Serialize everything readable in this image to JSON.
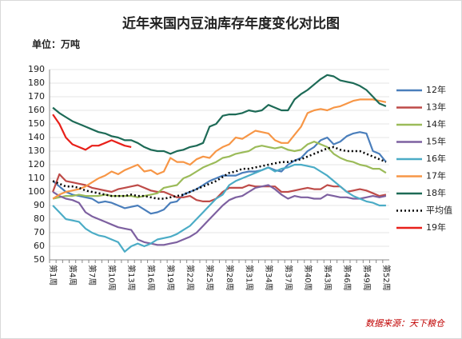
{
  "chart_data": {
    "type": "line",
    "title": "近年来国内豆油库存年度变化对比图",
    "subtitle": "单位：万吨",
    "source": "数据来源：天下粮仓",
    "categories": [
      "第1周",
      null,
      null,
      "第4周",
      null,
      null,
      "第7周",
      null,
      null,
      "第10周",
      null,
      null,
      "第13周",
      null,
      null,
      "第16周",
      null,
      null,
      "第19周",
      null,
      null,
      "第22周",
      null,
      null,
      "第25周",
      null,
      null,
      "第28周",
      null,
      null,
      "第31周",
      null,
      null,
      "第34周",
      null,
      null,
      "第37周",
      null,
      null,
      "第40周",
      null,
      null,
      "第43周",
      null,
      null,
      "第46周",
      null,
      null,
      "第49周",
      null,
      null,
      "第52周"
    ],
    "ylim": [
      50,
      190
    ],
    "yticks": [
      50,
      60,
      70,
      80,
      90,
      100,
      110,
      120,
      130,
      140,
      150,
      160,
      170,
      180,
      190
    ],
    "grid": true,
    "legend": "right",
    "series": [
      {
        "name": "12年",
        "color": "#4a7ebb",
        "values": [
          108,
          104,
          100,
          98,
          97,
          96,
          95,
          92,
          93,
          92,
          90,
          88,
          89,
          90,
          87,
          84,
          85,
          87,
          92,
          93,
          98,
          100,
          102,
          105,
          108,
          110,
          112,
          112,
          112,
          114,
          115,
          115,
          116,
          118,
          116,
          115,
          120,
          123,
          125,
          130,
          133,
          138,
          140,
          135,
          137,
          141,
          143,
          144,
          143,
          130,
          128,
          122
        ]
      },
      {
        "name": "13年",
        "color": "#be4b48",
        "values": [
          100,
          113,
          108,
          107,
          106,
          105,
          103,
          102,
          101,
          100,
          102,
          103,
          104,
          105,
          103,
          101,
          100,
          100,
          98,
          96,
          96,
          97,
          94,
          93,
          93,
          95,
          100,
          103,
          103,
          103,
          105,
          104,
          104,
          104,
          104,
          100,
          100,
          101,
          102,
          103,
          102,
          102,
          105,
          104,
          104,
          100,
          101,
          102,
          101,
          99,
          97,
          98
        ]
      },
      {
        "name": "14年",
        "color": "#9bbb59",
        "values": [
          95,
          96,
          97,
          97,
          98,
          97,
          97,
          97,
          98,
          97,
          97,
          97,
          97,
          96,
          97,
          98,
          99,
          103,
          104,
          105,
          110,
          112,
          115,
          118,
          120,
          122,
          125,
          126,
          128,
          129,
          130,
          133,
          134,
          133,
          132,
          133,
          131,
          130,
          131,
          135,
          137,
          135,
          133,
          128,
          125,
          123,
          122,
          120,
          119,
          117,
          117,
          114
        ]
      },
      {
        "name": "15年",
        "color": "#7d60a0",
        "values": [
          100,
          97,
          95,
          94,
          92,
          85,
          82,
          80,
          78,
          76,
          74,
          73,
          72,
          65,
          63,
          62,
          61,
          61,
          62,
          63,
          65,
          67,
          70,
          75,
          80,
          85,
          90,
          94,
          96,
          97,
          100,
          103,
          104,
          105,
          102,
          98,
          95,
          97,
          96,
          96,
          95,
          95,
          98,
          97,
          96,
          96,
          95,
          95,
          96,
          97,
          96,
          97
        ]
      },
      {
        "name": "16年",
        "color": "#4bacc6",
        "values": [
          90,
          85,
          80,
          79,
          78,
          73,
          70,
          68,
          67,
          65,
          63,
          56,
          60,
          62,
          60,
          62,
          65,
          66,
          67,
          69,
          72,
          75,
          80,
          85,
          90,
          95,
          98,
          105,
          108,
          110,
          112,
          114,
          116,
          118,
          115,
          117,
          118,
          120,
          120,
          119,
          118,
          115,
          112,
          108,
          104,
          100,
          97,
          95,
          93,
          92,
          90,
          90
        ]
      },
      {
        "name": "17年",
        "color": "#f79646",
        "values": [
          95,
          98,
          100,
          101,
          102,
          104,
          107,
          110,
          112,
          115,
          113,
          116,
          118,
          120,
          115,
          116,
          113,
          115,
          125,
          122,
          122,
          120,
          124,
          126,
          125,
          130,
          133,
          135,
          140,
          139,
          142,
          145,
          144,
          143,
          138,
          136,
          136,
          142,
          148,
          158,
          160,
          161,
          160,
          162,
          163,
          165,
          167,
          168,
          168,
          168,
          167,
          166
        ]
      },
      {
        "name": "18年",
        "color": "#1d6a56",
        "values": [
          162,
          158,
          155,
          152,
          150,
          148,
          146,
          144,
          143,
          141,
          140,
          138,
          138,
          136,
          133,
          131,
          130,
          130,
          128,
          130,
          131,
          133,
          134,
          136,
          148,
          150,
          156,
          157,
          157,
          158,
          160,
          159,
          160,
          164,
          162,
          160,
          160,
          168,
          172,
          175,
          179,
          183,
          186,
          185,
          182,
          181,
          180,
          178,
          175,
          170,
          165,
          163
        ]
      },
      {
        "name": "平均值",
        "color": "#000000",
        "dashed": true,
        "values": [
          108,
          106,
          104,
          104,
          103,
          101,
          100,
          99,
          98,
          97,
          97,
          97,
          98,
          97,
          97,
          96,
          95,
          95,
          96,
          97,
          98,
          100,
          102,
          104,
          106,
          108,
          111,
          114,
          115,
          117,
          117,
          118,
          119,
          120,
          121,
          122,
          122,
          123,
          124,
          126,
          128,
          130,
          132,
          133,
          131,
          130,
          130,
          130,
          128,
          126,
          124,
          122
        ]
      },
      {
        "name": "19年",
        "color": "#e8201a",
        "values": [
          157,
          150,
          140,
          135,
          133,
          131,
          134,
          134,
          136,
          138,
          136,
          134,
          133,
          null,
          null,
          null,
          null,
          null,
          null,
          null,
          null,
          null,
          null,
          null,
          null,
          null,
          null,
          null,
          null,
          null,
          null,
          null,
          null,
          null,
          null,
          null,
          null,
          null,
          null,
          null,
          null,
          null,
          null,
          null,
          null,
          null,
          null,
          null,
          null,
          null,
          null,
          null
        ]
      }
    ]
  }
}
